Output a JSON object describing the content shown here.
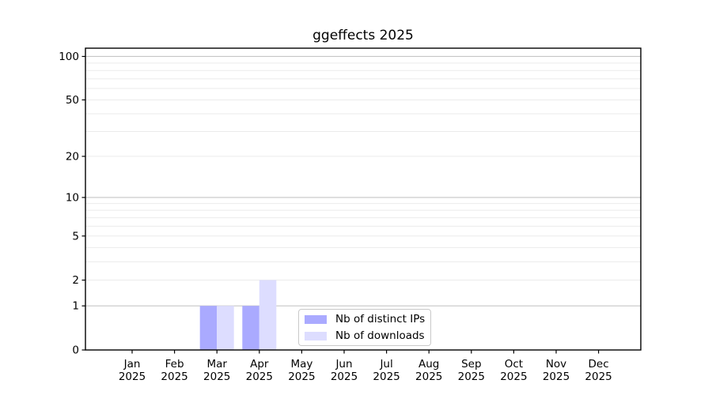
{
  "chart_data": {
    "type": "bar",
    "title": "ggeffects 2025",
    "categories": [
      "Jan 2025",
      "Feb 2025",
      "Mar 2025",
      "Apr 2025",
      "May 2025",
      "Jun 2025",
      "Jul 2025",
      "Aug 2025",
      "Sep 2025",
      "Oct 2025",
      "Nov 2025",
      "Dec 2025"
    ],
    "x_tick_lines": [
      [
        "Jan",
        "2025"
      ],
      [
        "Feb",
        "2025"
      ],
      [
        "Mar",
        "2025"
      ],
      [
        "Apr",
        "2025"
      ],
      [
        "May",
        "2025"
      ],
      [
        "Jun",
        "2025"
      ],
      [
        "Jul",
        "2025"
      ],
      [
        "Aug",
        "2025"
      ],
      [
        "Sep",
        "2025"
      ],
      [
        "Oct",
        "2025"
      ],
      [
        "Nov",
        "2025"
      ],
      [
        "Dec",
        "2025"
      ]
    ],
    "series": [
      {
        "name": "Nb of distinct IPs",
        "color": "#aaaaff",
        "values": [
          0,
          0,
          1,
          1,
          0,
          0,
          0,
          0,
          0,
          0,
          0,
          0
        ]
      },
      {
        "name": "Nb of downloads",
        "color": "#ddddff",
        "values": [
          0,
          0,
          1,
          2,
          0,
          0,
          0,
          0,
          0,
          0,
          0,
          0
        ]
      }
    ],
    "xlabel": "",
    "ylabel": "",
    "yscale": "log1p",
    "ylim": [
      0,
      114
    ],
    "ytick_values": [
      0,
      1,
      2,
      5,
      10,
      20,
      50,
      100
    ],
    "ytick_labels": [
      "0",
      "1",
      "2",
      "5",
      "10",
      "20",
      "50",
      "100"
    ],
    "grid_minor_values": [
      2,
      3,
      4,
      5,
      6,
      7,
      8,
      9,
      20,
      30,
      40,
      50,
      60,
      70,
      80,
      90
    ],
    "grid_major_values": [
      1,
      10,
      100
    ],
    "grid": "horizontal",
    "legend_position": "inside lower-center"
  },
  "colors": {
    "background": "#ffffff",
    "grid_minor": "#ebebeb",
    "grid_major": "#c6c6c6",
    "spine": "#000000",
    "tick_text": "#000000",
    "legend_border": "#c9c9c9"
  }
}
